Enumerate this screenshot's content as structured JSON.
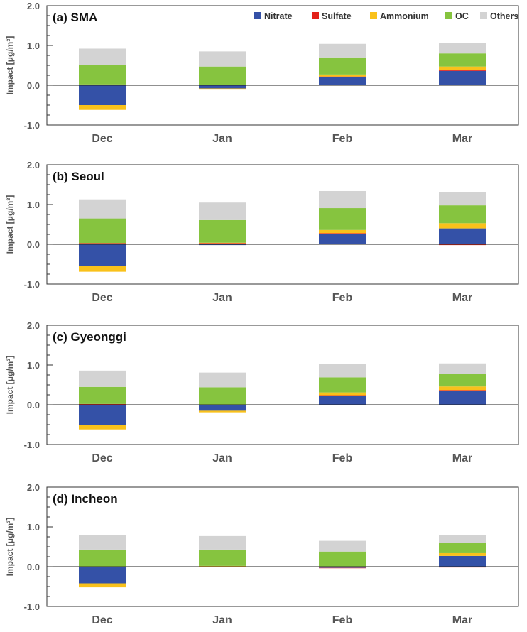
{
  "chart_data": [
    {
      "type": "bar",
      "title": "(a) SMA",
      "ylabel": "Impact [μg/m³]",
      "ylim": [
        -1.0,
        2.0
      ],
      "yticks": [
        "2.0",
        "1.0",
        "0.0",
        "-1.0"
      ],
      "categories": [
        "Dec",
        "Jan",
        "Feb",
        "Mar"
      ],
      "series": [
        {
          "name": "Nitrate",
          "values": [
            -0.5,
            -0.08,
            0.2,
            0.36
          ]
        },
        {
          "name": "Sulfate",
          "values": [
            0.02,
            0.01,
            0.02,
            0.02
          ]
        },
        {
          "name": "Ammonium",
          "values": [
            -0.12,
            -0.03,
            0.05,
            0.09
          ]
        },
        {
          "name": "OC",
          "values": [
            0.48,
            0.46,
            0.43,
            0.33
          ]
        },
        {
          "name": "Others",
          "values": [
            0.42,
            0.38,
            0.34,
            0.26
          ]
        }
      ]
    },
    {
      "type": "bar",
      "title": "(b) Seoul",
      "ylabel": "Impact [μg/m³]",
      "ylim": [
        -1.0,
        2.0
      ],
      "yticks": [
        "2.0",
        "1.0",
        "0.0",
        "-1.0"
      ],
      "categories": [
        "Dec",
        "Jan",
        "Feb",
        "Mar"
      ],
      "series": [
        {
          "name": "Nitrate",
          "values": [
            -0.55,
            -0.02,
            0.26,
            0.4
          ]
        },
        {
          "name": "Sulfate",
          "values": [
            0.03,
            0.03,
            0.02,
            -0.02
          ]
        },
        {
          "name": "Ammonium",
          "values": [
            -0.14,
            0.01,
            0.08,
            0.13
          ]
        },
        {
          "name": "OC",
          "values": [
            0.62,
            0.57,
            0.55,
            0.45
          ]
        },
        {
          "name": "Others",
          "values": [
            0.48,
            0.44,
            0.43,
            0.33
          ]
        }
      ]
    },
    {
      "type": "bar",
      "title": "(c) Gyeonggi",
      "ylabel": "Impact [μg/m³]",
      "ylim": [
        -1.0,
        2.0
      ],
      "yticks": [
        "2.0",
        "1.0",
        "0.0",
        "-1.0"
      ],
      "categories": [
        "Dec",
        "Jan",
        "Feb",
        "Mar"
      ],
      "series": [
        {
          "name": "Nitrate",
          "values": [
            -0.5,
            -0.15,
            0.22,
            0.35
          ]
        },
        {
          "name": "Sulfate",
          "values": [
            0.02,
            0.01,
            0.02,
            0.02
          ]
        },
        {
          "name": "Ammonium",
          "values": [
            -0.12,
            -0.04,
            0.07,
            0.09
          ]
        },
        {
          "name": "OC",
          "values": [
            0.43,
            0.43,
            0.38,
            0.32
          ]
        },
        {
          "name": "Others",
          "values": [
            0.41,
            0.37,
            0.33,
            0.26
          ]
        }
      ]
    },
    {
      "type": "bar",
      "title": "(d) Incheon",
      "ylabel": "Impact [μg/m³]",
      "ylim": [
        -1.0,
        2.0
      ],
      "yticks": [
        "2.0",
        "1.0",
        "0.0",
        "-1.0"
      ],
      "categories": [
        "Dec",
        "Jan",
        "Feb",
        "Mar"
      ],
      "series": [
        {
          "name": "Nitrate",
          "values": [
            -0.42,
            0.0,
            -0.03,
            0.27
          ]
        },
        {
          "name": "Sulfate",
          "values": [
            0.01,
            0.01,
            -0.01,
            -0.02
          ]
        },
        {
          "name": "Ammonium",
          "values": [
            -0.1,
            0.01,
            0.01,
            0.07
          ]
        },
        {
          "name": "OC",
          "values": [
            0.42,
            0.41,
            0.37,
            0.26
          ]
        },
        {
          "name": "Others",
          "values": [
            0.37,
            0.34,
            0.27,
            0.19
          ]
        }
      ]
    }
  ],
  "legend": {
    "placement": "top-right",
    "items": [
      {
        "name": "Nitrate",
        "color": "#3451a7"
      },
      {
        "name": "Sulfate",
        "color": "#e32119"
      },
      {
        "name": "Ammonium",
        "color": "#f9c11b"
      },
      {
        "name": "OC",
        "color": "#86c43f"
      },
      {
        "name": "Others",
        "color": "#d3d3d3"
      }
    ]
  },
  "colors": {
    "Nitrate": "#3451a7",
    "Sulfate": "#e32119",
    "Ammonium": "#f9c11b",
    "OC": "#86c43f",
    "Others": "#d3d3d3"
  }
}
